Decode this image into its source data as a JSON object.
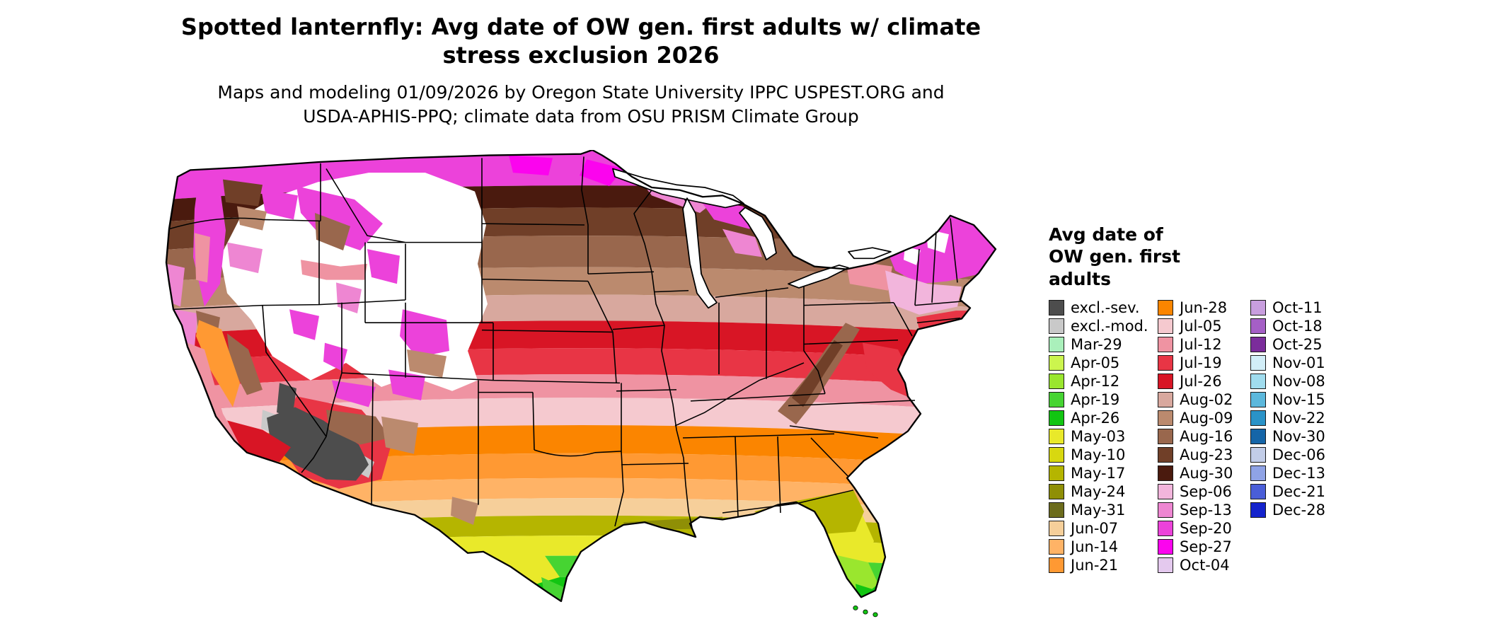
{
  "header": {
    "title_lines": [
      "Spotted lanternfly: Avg date of OW gen. first adults w/ climate",
      "stress exclusion 2026"
    ],
    "subtitle_lines": [
      "Maps and modeling 01/09/2026 by Oregon State University IPPC USPEST.ORG and",
      "USDA-APHIS-PPQ; climate data from OSU PRISM Climate Group"
    ]
  },
  "legend": {
    "title_lines": [
      "Avg date of",
      "OW gen. first",
      "adults"
    ],
    "columns": [
      [
        {
          "label": "excl.-sev.",
          "color": "#4d4d4d"
        },
        {
          "label": "excl.-mod.",
          "color": "#c9c9c9"
        },
        {
          "label": "Mar-29",
          "color": "#aaf0bb"
        },
        {
          "label": "Apr-05",
          "color": "#ccf54e"
        },
        {
          "label": "Apr-12",
          "color": "#9ae62e"
        },
        {
          "label": "Apr-19",
          "color": "#46d432"
        },
        {
          "label": "Apr-26",
          "color": "#12c512"
        },
        {
          "label": "May-03",
          "color": "#e9e92a"
        },
        {
          "label": "May-10",
          "color": "#d8d810"
        },
        {
          "label": "May-17",
          "color": "#b5b500"
        },
        {
          "label": "May-24",
          "color": "#8f8f06"
        },
        {
          "label": "May-31",
          "color": "#6c6c1c"
        },
        {
          "label": "Jun-07",
          "color": "#f6cf9a"
        },
        {
          "label": "Jun-14",
          "color": "#ffb366"
        },
        {
          "label": "Jun-21",
          "color": "#ff9933"
        }
      ],
      [
        {
          "label": "Jun-28",
          "color": "#fb8500"
        },
        {
          "label": "Jul-05",
          "color": "#f5c9cf"
        },
        {
          "label": "Jul-12",
          "color": "#ef93a2"
        },
        {
          "label": "Jul-19",
          "color": "#e83545"
        },
        {
          "label": "Jul-26",
          "color": "#d81525"
        },
        {
          "label": "Aug-02",
          "color": "#d8a89e"
        },
        {
          "label": "Aug-09",
          "color": "#bb8a6e"
        },
        {
          "label": "Aug-16",
          "color": "#99674d"
        },
        {
          "label": "Aug-23",
          "color": "#703f28"
        },
        {
          "label": "Aug-30",
          "color": "#4a1a0e"
        },
        {
          "label": "Sep-06",
          "color": "#f2b5dc"
        },
        {
          "label": "Sep-13",
          "color": "#ee86d2"
        },
        {
          "label": "Sep-20",
          "color": "#ec42da"
        },
        {
          "label": "Sep-27",
          "color": "#fb04ee"
        },
        {
          "label": "Oct-04",
          "color": "#e4c9ee"
        }
      ],
      [
        {
          "label": "Oct-11",
          "color": "#c89ede"
        },
        {
          "label": "Oct-18",
          "color": "#a55fc6"
        },
        {
          "label": "Oct-25",
          "color": "#7b2d9b"
        },
        {
          "label": "Nov-01",
          "color": "#d2eef8"
        },
        {
          "label": "Nov-08",
          "color": "#a0dcee"
        },
        {
          "label": "Nov-15",
          "color": "#5cb8dc"
        },
        {
          "label": "Nov-22",
          "color": "#2a93c8"
        },
        {
          "label": "Nov-30",
          "color": "#1565a8"
        },
        {
          "label": "Dec-06",
          "color": "#c2cde8"
        },
        {
          "label": "Dec-13",
          "color": "#8fa3e6"
        },
        {
          "label": "Dec-21",
          "color": "#4a5ed8"
        },
        {
          "label": "Dec-28",
          "color": "#1423cc"
        }
      ]
    ]
  },
  "map": {
    "background_color": "#ffffff",
    "no_data_color": "#ffffff",
    "state_border_color": "#000000"
  }
}
